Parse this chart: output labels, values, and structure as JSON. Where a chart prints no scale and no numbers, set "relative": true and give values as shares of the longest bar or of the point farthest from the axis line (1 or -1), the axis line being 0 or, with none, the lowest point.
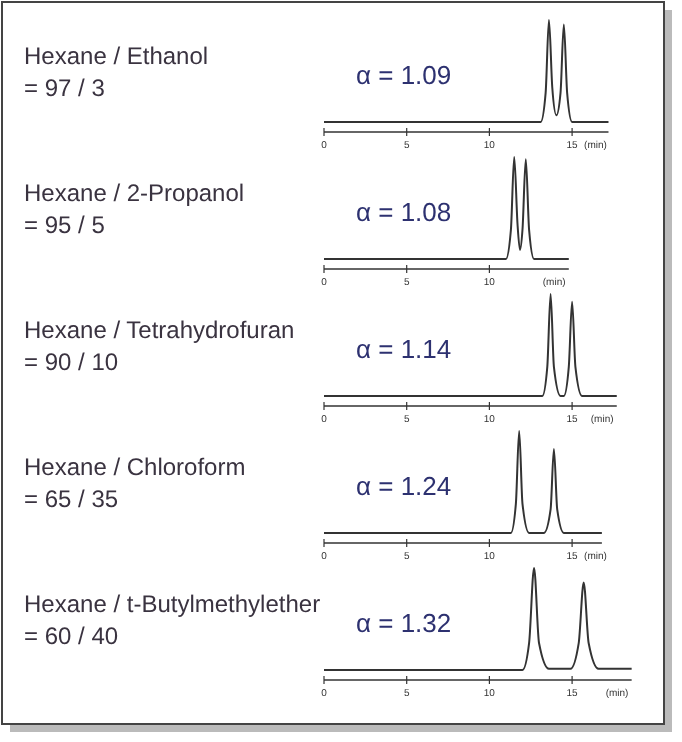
{
  "chart_data": [
    {
      "type": "line",
      "title": "Hexane / Ethanol\n= 97 / 3",
      "annotations": [
        "α = 1.09"
      ],
      "relative": true,
      "xlabel": "(min)",
      "xlim": [
        0,
        17.2
      ],
      "xticks": [
        0,
        5,
        10,
        15
      ],
      "color": "#333333",
      "grid": false,
      "x": [
        0,
        5,
        10,
        13.1,
        13.4,
        13.6,
        13.8,
        14.05,
        14.3,
        14.5,
        14.7,
        15.0,
        17.2
      ],
      "values": [
        0.09,
        0.09,
        0.09,
        0.09,
        0.35,
        1,
        0.4,
        0.15,
        0.35,
        0.96,
        0.35,
        0.09,
        0.09
      ]
    },
    {
      "type": "line",
      "title": "Hexane / 2-Propanol\n= 95 / 5",
      "annotations": [
        "α = 1.08"
      ],
      "relative": true,
      "xlabel": "(min)",
      "xlim": [
        0,
        14.8
      ],
      "xticks": [
        0,
        5,
        10
      ],
      "color": "#333333",
      "grid": false,
      "x": [
        0,
        5,
        10,
        11.0,
        11.3,
        11.5,
        11.7,
        11.85,
        12.0,
        12.2,
        12.4,
        12.7,
        14.8
      ],
      "values": [
        0.09,
        0.09,
        0.09,
        0.09,
        0.35,
        1,
        0.4,
        0.17,
        0.35,
        0.98,
        0.35,
        0.09,
        0.09
      ]
    },
    {
      "type": "line",
      "title": "Hexane / Tetrahydrofuran\n= 90 / 10",
      "annotations": [
        "α = 1.14"
      ],
      "relative": true,
      "xlabel": "(min)",
      "xlim": [
        0,
        17.7
      ],
      "xticks": [
        0,
        5,
        10,
        15
      ],
      "color": "#333333",
      "grid": false,
      "x": [
        0,
        5,
        10,
        13.2,
        13.5,
        13.7,
        13.9,
        14.3,
        14.5,
        14.8,
        15.0,
        15.2,
        15.6,
        17.7
      ],
      "values": [
        0.09,
        0.09,
        0.09,
        0.09,
        0.35,
        1,
        0.35,
        0.09,
        0.09,
        0.35,
        0.93,
        0.35,
        0.09,
        0.09
      ]
    },
    {
      "type": "line",
      "title": "Hexane / Chloroform\n= 65 / 35",
      "annotations": [
        "α = 1.24"
      ],
      "relative": true,
      "xlabel": "(min)",
      "xlim": [
        0,
        16.8
      ],
      "xticks": [
        0,
        5,
        10,
        15
      ],
      "color": "#333333",
      "grid": false,
      "x": [
        0,
        5,
        10,
        11.3,
        11.6,
        11.8,
        12.0,
        12.4,
        13.3,
        13.7,
        13.9,
        14.1,
        14.5,
        16.8
      ],
      "values": [
        0.09,
        0.09,
        0.09,
        0.09,
        0.35,
        1,
        0.35,
        0.09,
        0.09,
        0.3,
        0.84,
        0.3,
        0.09,
        0.09
      ]
    },
    {
      "type": "line",
      "title": "Hexane / t-Butylmethylether\n= 60 / 40",
      "annotations": [
        "α = 1.32"
      ],
      "relative": true,
      "xlabel": "(min)",
      "xlim": [
        0,
        18.6
      ],
      "xticks": [
        0,
        5,
        10,
        15
      ],
      "color": "#333333",
      "grid": false,
      "x": [
        0,
        5,
        10,
        12.0,
        12.4,
        12.7,
        13.0,
        13.6,
        14.9,
        15.4,
        15.7,
        16.0,
        16.6,
        18.6
      ],
      "values": [
        0.09,
        0.09,
        0.09,
        0.09,
        0.33,
        1,
        0.33,
        0.1,
        0.1,
        0.33,
        0.87,
        0.33,
        0.1,
        0.1
      ]
    }
  ]
}
